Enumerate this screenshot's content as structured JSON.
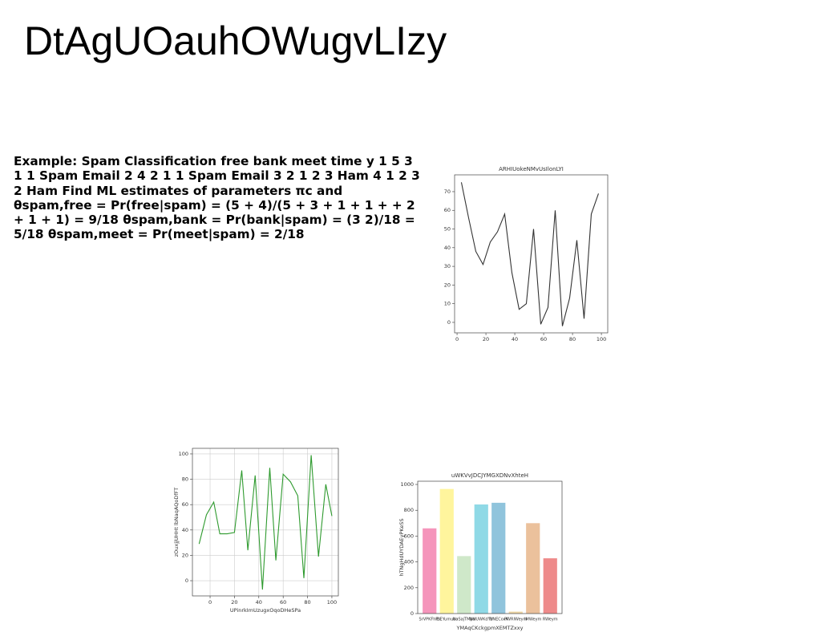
{
  "title": "DtAgUOauhOWugvLIzy",
  "text": "Example: Spam Classification free bank meet time y 1 5 3 1 1 Spam Email 2 4 2 1 1 Spam Email 3 2 1 2 3 Ham 4 1 2 3 2 Ham Find ML estimates of parameters πc and θspam,free = Pr(free|spam) = (5 + 4)/(5 + 3 + 1 + 1 + + 2 + 1 + 1) = 9/18 θspam,bank = Pr(bank|spam) = (3 2)/18 = 5/18 θspam,meet = Pr(meet|spam) = 2/18",
  "chart_data": [
    {
      "type": "line",
      "title": "ARHIUokeNMvUsIlonLYI",
      "color": "#333333",
      "grid": false,
      "x": [
        3,
        8,
        13,
        18,
        23,
        28,
        33,
        38,
        43,
        48,
        53,
        58,
        63,
        68,
        73,
        78,
        83,
        88,
        93,
        98
      ],
      "values": [
        75,
        56,
        38,
        31,
        43,
        48.5,
        58,
        26.6,
        7,
        10,
        50,
        -1,
        8,
        60,
        -2,
        13,
        44,
        2,
        58,
        69
      ],
      "xlim": [
        -1.7,
        104.4
      ],
      "xticks": [
        0,
        20,
        40,
        60,
        80,
        100
      ],
      "ylim": [
        -5.6,
        79
      ],
      "yticks": [
        0,
        10,
        20,
        30,
        40,
        50,
        60,
        70
      ]
    },
    {
      "type": "line",
      "x_label": "UPinrkImUzugxOqoDHeSPa",
      "y_label": "zOuxjjUHHt lbNaqAQoDfFT",
      "color": "#2e9a2e",
      "grid": true,
      "x": [
        -9,
        -3,
        3,
        8,
        14,
        20,
        26,
        31,
        37,
        43,
        49,
        54,
        60,
        66,
        72,
        77,
        83,
        89,
        95,
        100
      ],
      "values": [
        29,
        52,
        62,
        37,
        37,
        38,
        87,
        24,
        83,
        -7,
        89,
        16,
        84,
        78,
        67,
        2,
        99,
        19,
        76,
        51
      ],
      "xlim": [
        -14.5,
        105.3
      ],
      "xticks": [
        0,
        20,
        40,
        60,
        80,
        100
      ],
      "ylim": [
        -12,
        104.4
      ],
      "yticks": [
        0,
        20,
        40,
        60,
        80,
        100
      ]
    },
    {
      "type": "bar",
      "title": "uWKVvJDCJYMGXDNvXhteH",
      "x_label": "YMAqCKckgpmXEMTZxxy",
      "y_label": "hTNgHdUYDAEyPKeSS",
      "grid": false,
      "categories": [
        "SrVPKFhPs",
        "lDEYumuco",
        "NoSajTMpu",
        "NMUWKdYV",
        "TsNECoxK",
        "PWRIWeym",
        "IMWeym",
        "RWeym"
      ],
      "values": [
        660,
        965,
        445,
        845,
        858,
        15,
        700,
        428
      ],
      "colors": [
        "#f595bb",
        "#fff59d",
        "#cfe8c9",
        "#8fd9e6",
        "#90c4dc",
        "#f1d9a8",
        "#ebc19c",
        "#ee8a8a"
      ],
      "ylim": [
        0,
        1025
      ],
      "yticks": [
        0,
        200,
        400,
        600,
        800,
        1000
      ]
    }
  ]
}
